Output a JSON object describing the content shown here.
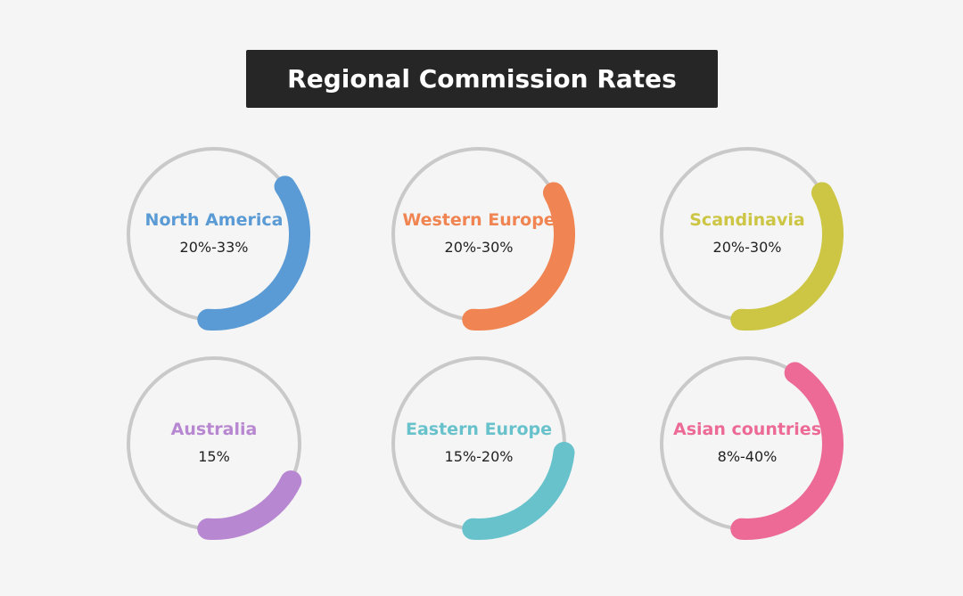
{
  "header": {
    "title": "Regional Commission Rates"
  },
  "regions": [
    {
      "name": "North America",
      "rate": "20%-33%",
      "color": "#5b9bd5"
    },
    {
      "name": "Western Europe",
      "rate": "20%-30%",
      "color": "#f08452"
    },
    {
      "name": "Scandinavia",
      "rate": "20%-30%",
      "color": "#cdc544"
    },
    {
      "name": "Australia",
      "rate": "15%",
      "color": "#b887d1"
    },
    {
      "name": "Eastern Europe",
      "rate": "15%-20%",
      "color": "#68c2cc"
    },
    {
      "name": "Asian countries",
      "rate": "8%-40%",
      "color": "#ec6a95"
    }
  ]
}
